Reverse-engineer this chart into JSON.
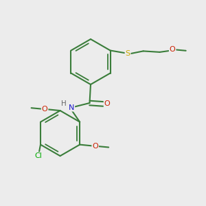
{
  "background_color": "#ececec",
  "bond_color": "#3a7d3a",
  "atom_colors": {
    "N": "#1a1acc",
    "O": "#cc2000",
    "S": "#ccaa00",
    "Cl": "#00aa00",
    "H": "#666666"
  },
  "bond_width": 1.5,
  "figsize": [
    3.0,
    3.0
  ],
  "dpi": 100
}
